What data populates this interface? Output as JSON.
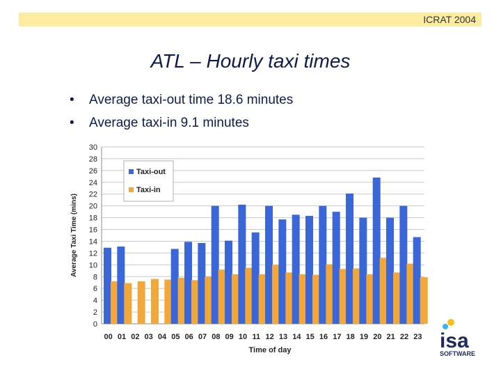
{
  "header": {
    "text": "ICRAT 2004"
  },
  "slide": {
    "title": "ATL – Hourly taxi times",
    "bullets": [
      "Average taxi-out time 18.6 minutes",
      "Average taxi-in 9.1 minutes"
    ]
  },
  "logo": {
    "text": "isa",
    "subtext": "SOFTWARE"
  },
  "chart_data": {
    "type": "bar",
    "xlabel": "Time of day",
    "ylabel": "Average Taxi Time (mins)",
    "ylim": [
      0,
      30
    ],
    "yticks": [
      0,
      2,
      4,
      6,
      8,
      10,
      12,
      14,
      16,
      18,
      20,
      22,
      24,
      26,
      28,
      30
    ],
    "grid": true,
    "legend": "top-left",
    "categories": [
      "00",
      "01",
      "02",
      "03",
      "04",
      "05",
      "06",
      "07",
      "08",
      "09",
      "10",
      "11",
      "12",
      "13",
      "14",
      "15",
      "16",
      "17",
      "18",
      "19",
      "20",
      "21",
      "22",
      "23"
    ],
    "series": [
      {
        "name": "Taxi-out",
        "color": "#3a66d8",
        "values": [
          12.9,
          13.1,
          null,
          null,
          null,
          12.7,
          13.9,
          13.7,
          20.0,
          14.1,
          20.2,
          15.5,
          20.0,
          17.7,
          18.5,
          18.3,
          20.0,
          19.0,
          22.1,
          18.0,
          24.8,
          18.0,
          20.0,
          14.7
        ]
      },
      {
        "name": "Taxi-in",
        "color": "#f2a73a",
        "values": [
          7.2,
          6.9,
          7.2,
          7.6,
          7.5,
          7.8,
          7.4,
          8.0,
          9.2,
          8.4,
          9.5,
          8.4,
          10.0,
          8.7,
          8.4,
          8.3,
          10.1,
          9.3,
          9.4,
          8.4,
          11.2,
          8.7,
          10.2,
          7.9
        ]
      }
    ]
  }
}
